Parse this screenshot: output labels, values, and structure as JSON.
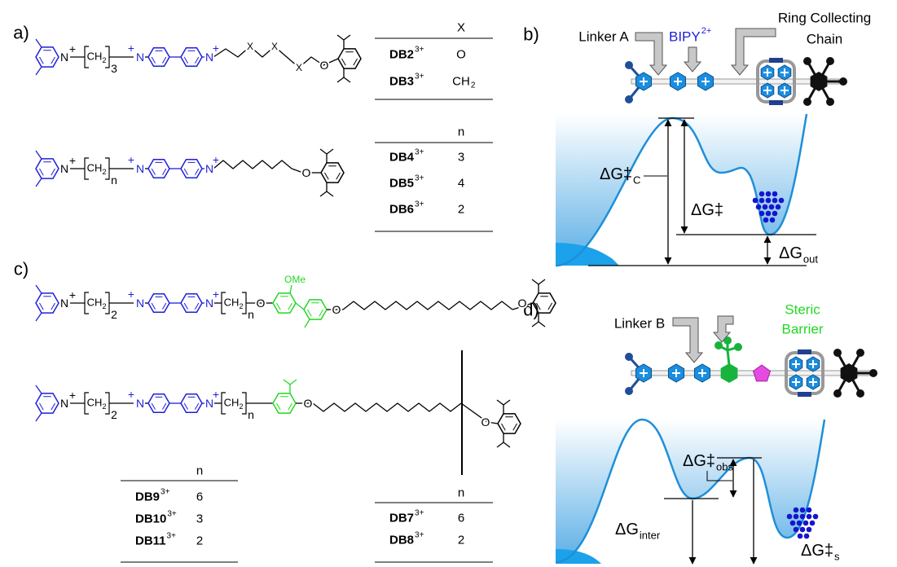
{
  "panel_a": {
    "label": "a)",
    "structure_1": {
      "labels": [
        "N",
        "+",
        "CH",
        "2",
        "3",
        "+",
        "N",
        "N",
        "+",
        "X",
        "X",
        "X",
        "O"
      ]
    },
    "structure_2": {
      "labels": [
        "N",
        "+",
        "CH",
        "2",
        "n",
        "+",
        "N",
        "N",
        "+",
        "O"
      ]
    },
    "table_1": {
      "header": "X",
      "rows": [
        {
          "name": "DB2",
          "charge": "3+",
          "value": "O"
        },
        {
          "name": "DB3",
          "charge": "3+",
          "value": "CH",
          "value_sub": "2"
        }
      ]
    },
    "table_2": {
      "header": "n",
      "rows": [
        {
          "name": "DB4",
          "charge": "3+",
          "value": "3"
        },
        {
          "name": "DB5",
          "charge": "3+",
          "value": "4"
        },
        {
          "name": "DB6",
          "charge": "3+",
          "value": "2"
        }
      ]
    }
  },
  "panel_b": {
    "label": "b)",
    "callouts": {
      "linker": "Linker A",
      "bipy": "BIPY",
      "bipy_charge": "2+",
      "ring_line1": "Ring Collecting",
      "ring_line2": "Chain"
    },
    "energies": {
      "barrier_c": {
        "main": "ΔG‡",
        "sub": "C"
      },
      "barrier": {
        "main": "ΔG‡"
      },
      "out": {
        "main": "ΔG",
        "sub": "out"
      }
    }
  },
  "panel_c": {
    "label": "c)",
    "structure_1": {
      "labels": [
        "N",
        "+",
        "CH",
        "2",
        "2",
        "+",
        "N",
        "N",
        "+",
        "CH",
        "2",
        "n",
        "O",
        "OMe",
        "O",
        "O"
      ]
    },
    "structure_2": {
      "labels": [
        "N",
        "+",
        "CH",
        "2",
        "2",
        "+",
        "N",
        "N",
        "+",
        "CH",
        "2",
        "n",
        "O",
        "O"
      ]
    },
    "table_left": {
      "header": "n",
      "rows": [
        {
          "name": "DB9",
          "charge": "3+",
          "value": "6"
        },
        {
          "name": "DB10",
          "charge": "3+",
          "value": "3"
        },
        {
          "name": "DB11",
          "charge": "3+",
          "value": "2"
        }
      ]
    },
    "table_right": {
      "header": "n",
      "rows": [
        {
          "name": "DB7",
          "charge": "3+",
          "value": "6"
        },
        {
          "name": "DB8",
          "charge": "3+",
          "value": "2"
        }
      ]
    }
  },
  "panel_d": {
    "label": "d)",
    "callouts": {
      "linker": "Linker B",
      "steric_line1": "Steric",
      "steric_line2": "Barrier"
    },
    "energies": {
      "obs": {
        "main": "ΔG‡",
        "sub": "obs"
      },
      "inter": {
        "main": "ΔG",
        "sub": "inter"
      },
      "s": {
        "main": "ΔG‡",
        "sub": "s"
      }
    }
  }
}
